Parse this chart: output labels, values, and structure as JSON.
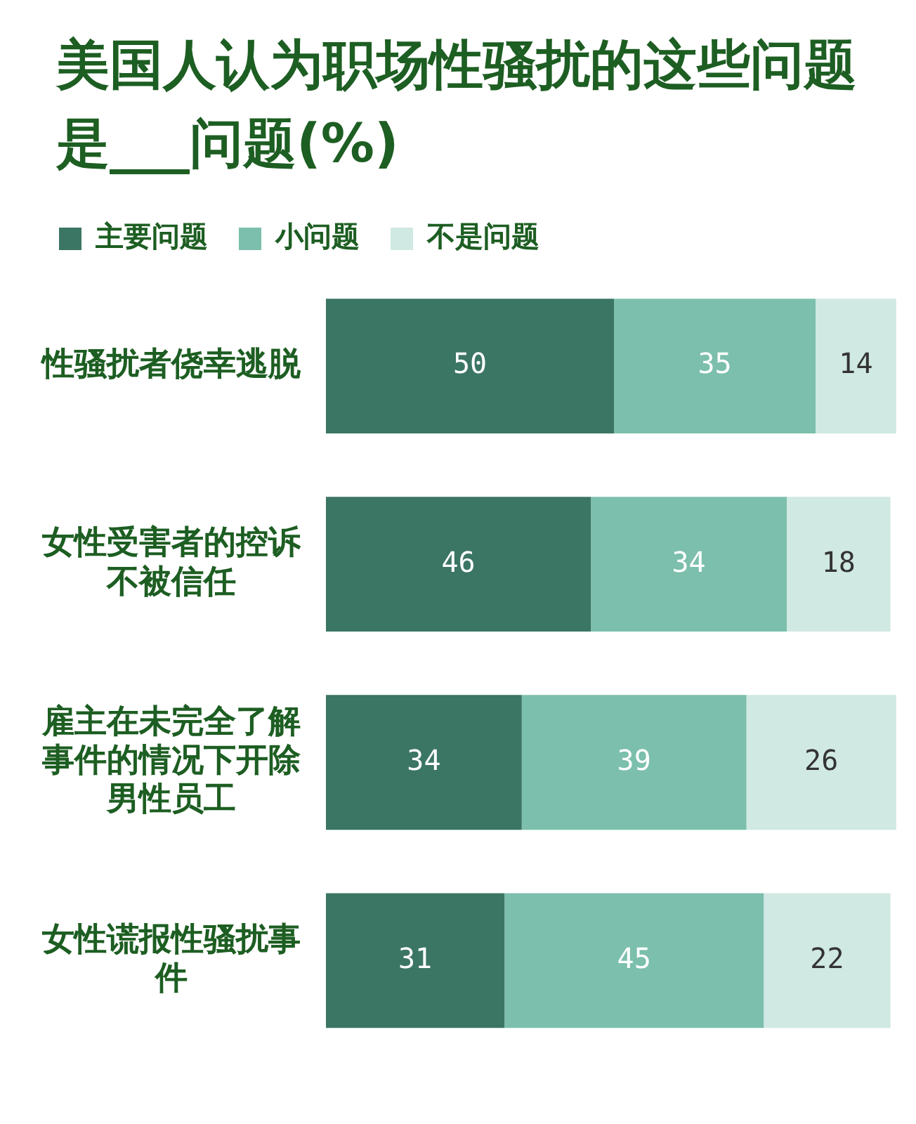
{
  "chart_data": {
    "type": "bar",
    "orientation": "horizontal",
    "stacked": true,
    "title": "美国人认为职场性骚扰的这些问题是___问题(%)",
    "categories": [
      "性骚扰者侥幸逃脱",
      "女性受害者的控诉不被信任",
      "雇主在未完全了解事件的情况下开除男性员工",
      "女性谎报性骚扰事件"
    ],
    "series": [
      {
        "name": "主要问题",
        "color": "#3b7564",
        "values": [
          50,
          46,
          34,
          31
        ]
      },
      {
        "name": "小问题",
        "color": "#7bbfac",
        "values": [
          35,
          34,
          39,
          45
        ]
      },
      {
        "name": "不是问题",
        "color": "#d0e9e2",
        "values": [
          14,
          18,
          26,
          22
        ]
      }
    ],
    "data_labels": true,
    "legend": "top"
  }
}
